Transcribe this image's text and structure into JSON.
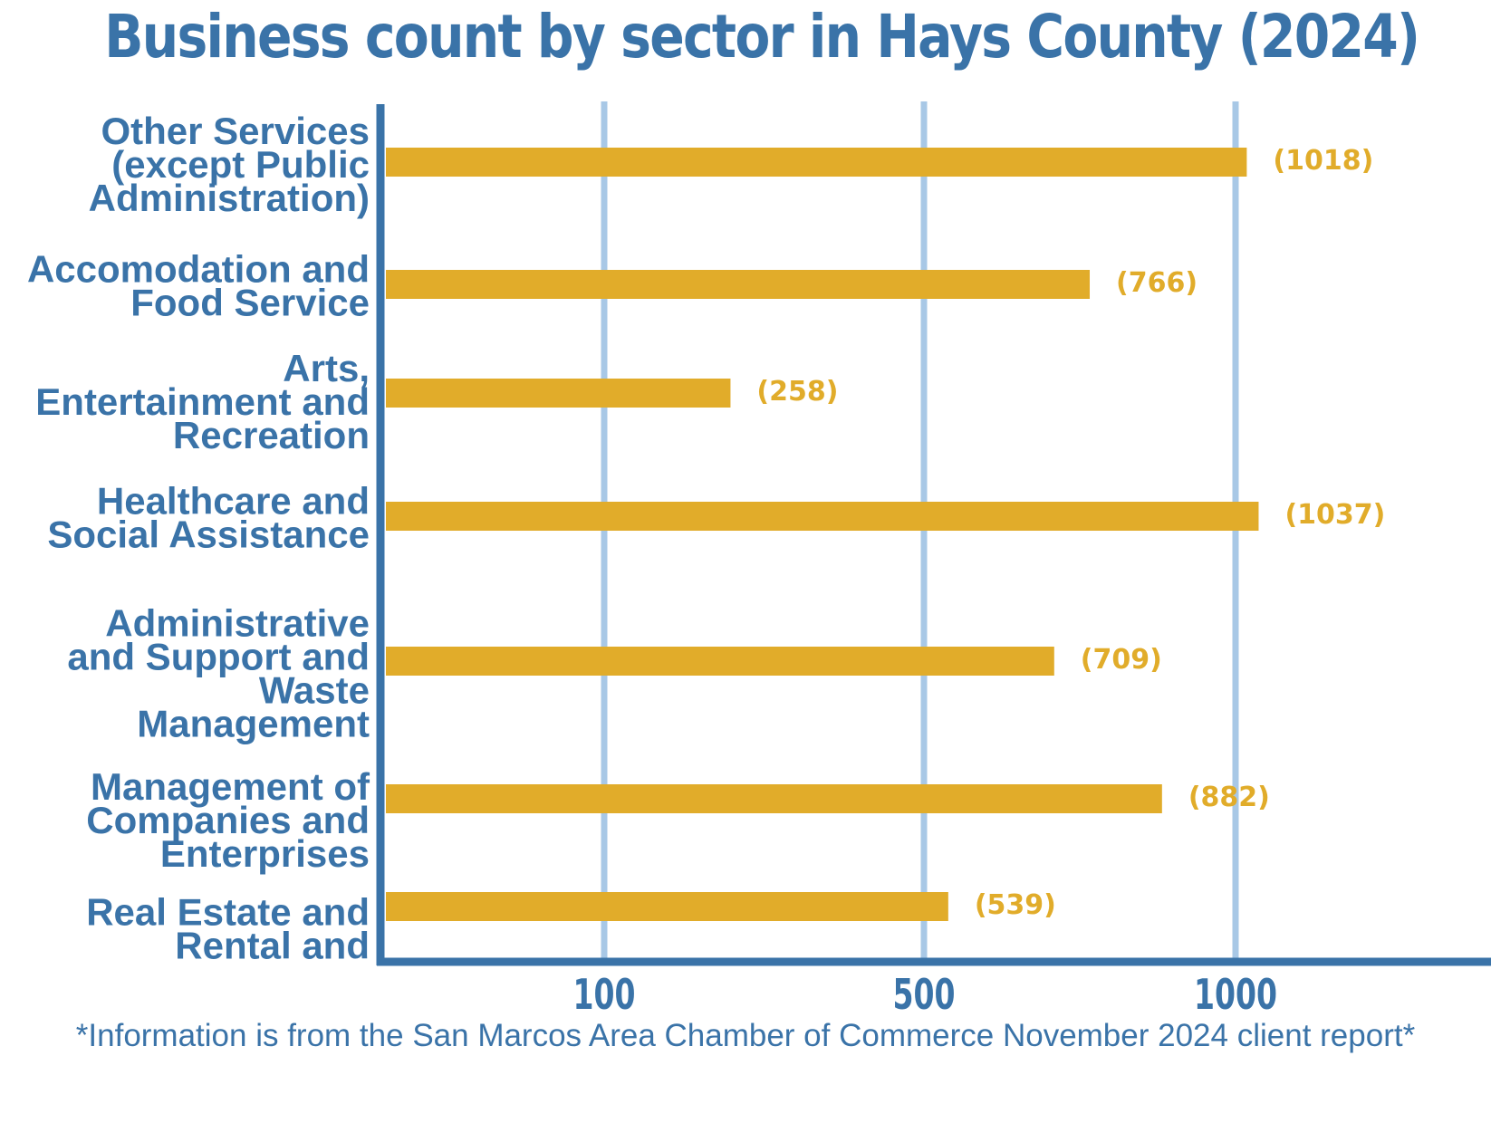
{
  "page": {
    "footnote": "*Information is from the San Marcos Area Chamber of Commerce November 2024 client report*"
  },
  "colors": {
    "title": "#3a73a8",
    "axis": "#3a73a8",
    "grid": "#a8c8e6",
    "bar": "#e1ac2a",
    "value_label": "#e1ac2a"
  },
  "chart_data": {
    "type": "bar",
    "orientation": "horizontal",
    "title": "Business count by sector in Hays County (2024)",
    "xlabel": "",
    "ylabel": "",
    "grid": true,
    "categories": [
      "Other Services (except Public Administration)",
      "Accomodation and Food Service",
      "Arts, Entertainment and Recreation",
      "Healthcare and Social Assistance",
      "Administrative and Support and Waste Management",
      "Management of Companies and Enterprises",
      "Real Estate and Rental and"
    ],
    "category_lines": [
      [
        "Other Services",
        "(except Public",
        "Administration)"
      ],
      [
        "Accomodation and",
        "Food Service"
      ],
      [
        "Arts,",
        "Entertainment and",
        "Recreation"
      ],
      [
        "Healthcare and",
        "Social Assistance"
      ],
      [
        "Administrative",
        "and Support and",
        "Waste",
        "Management"
      ],
      [
        "Management of",
        "Companies and",
        "Enterprises"
      ],
      [
        "Real Estate and",
        "Rental and"
      ]
    ],
    "values": [
      1018,
      766,
      258,
      1037,
      709,
      882,
      539
    ],
    "value_labels": [
      "(1018)",
      "(766)",
      "(258)",
      "(1037)",
      "(709)",
      "(882)",
      "(539)"
    ],
    "x_ticks": [
      100,
      500,
      1000
    ],
    "x_tick_labels": [
      "100",
      "500",
      "1000"
    ]
  }
}
